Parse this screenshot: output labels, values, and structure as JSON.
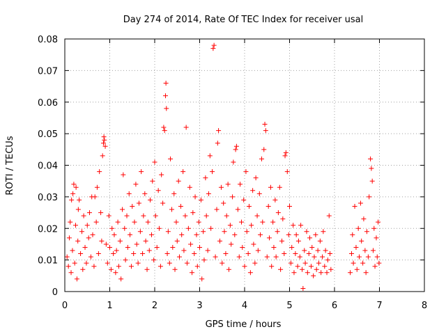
{
  "chart_data": {
    "type": "scatter",
    "title": "Day 274 of 2014, Rate Of TEC Index for receiver usal",
    "xlabel": "GPS time / hours",
    "ylabel": "ROTI / TECUs",
    "xlim": [
      0,
      8
    ],
    "ylim": [
      0,
      0.08
    ],
    "x_ticks": [
      0,
      1,
      2,
      3,
      4,
      5,
      6,
      7,
      8
    ],
    "x_tick_labels": [
      "0",
      "1",
      "2",
      "3",
      "4",
      "5",
      "6",
      "7",
      "8"
    ],
    "y_ticks": [
      0,
      0.01,
      0.02,
      0.03,
      0.04,
      0.05,
      0.06,
      0.07,
      0.08
    ],
    "y_tick_labels": [
      "0",
      "0.01",
      "0.02",
      "0.03",
      "0.04",
      "0.05",
      "0.06",
      "0.07",
      "0.08"
    ],
    "grid": true,
    "marker": "plus",
    "marker_color": "#ff0000",
    "series": [
      {
        "name": "ROTI",
        "points": [
          [
            0.05,
            0.011
          ],
          [
            0.08,
            0.008
          ],
          [
            0.1,
            0.017
          ],
          [
            0.12,
            0.022
          ],
          [
            0.14,
            0.006
          ],
          [
            0.15,
            0.029
          ],
          [
            0.17,
            0.013
          ],
          [
            0.18,
            0.031
          ],
          [
            0.2,
            0.034
          ],
          [
            0.22,
            0.009
          ],
          [
            0.24,
            0.021
          ],
          [
            0.25,
            0.033
          ],
          [
            0.27,
            0.004
          ],
          [
            0.29,
            0.016
          ],
          [
            0.3,
            0.026
          ],
          [
            0.32,
            0.029
          ],
          [
            0.35,
            0.012
          ],
          [
            0.38,
            0.019
          ],
          [
            0.4,
            0.007
          ],
          [
            0.42,
            0.024
          ],
          [
            0.45,
            0.014
          ],
          [
            0.48,
            0.009
          ],
          [
            0.5,
            0.021
          ],
          [
            0.53,
            0.017
          ],
          [
            0.55,
            0.025
          ],
          [
            0.58,
            0.011
          ],
          [
            0.6,
            0.03
          ],
          [
            0.62,
            0.018
          ],
          [
            0.65,
            0.008
          ],
          [
            0.67,
            0.03
          ],
          [
            0.7,
            0.022
          ],
          [
            0.72,
            0.033
          ],
          [
            0.75,
            0.012
          ],
          [
            0.77,
            0.038
          ],
          [
            0.8,
            0.025
          ],
          [
            0.82,
            0.016
          ],
          [
            0.84,
            0.043
          ],
          [
            0.86,
            0.047
          ],
          [
            0.87,
            0.049
          ],
          [
            0.88,
            0.048
          ],
          [
            0.9,
            0.046
          ],
          [
            0.92,
            0.015
          ],
          [
            0.95,
            0.009
          ],
          [
            0.98,
            0.024
          ],
          [
            1.0,
            0.014
          ],
          [
            1.03,
            0.007
          ],
          [
            1.05,
            0.02
          ],
          [
            1.08,
            0.012
          ],
          [
            1.1,
            0.018
          ],
          [
            1.13,
            0.006
          ],
          [
            1.15,
            0.013
          ],
          [
            1.18,
            0.022
          ],
          [
            1.2,
            0.008
          ],
          [
            1.23,
            0.016
          ],
          [
            1.25,
            0.004
          ],
          [
            1.28,
            0.026
          ],
          [
            1.3,
            0.037
          ],
          [
            1.33,
            0.02
          ],
          [
            1.35,
            0.01
          ],
          [
            1.38,
            0.024
          ],
          [
            1.4,
            0.014
          ],
          [
            1.43,
            0.031
          ],
          [
            1.45,
            0.018
          ],
          [
            1.48,
            0.008
          ],
          [
            1.5,
            0.027
          ],
          [
            1.53,
            0.012
          ],
          [
            1.55,
            0.022
          ],
          [
            1.58,
            0.034
          ],
          [
            1.6,
            0.015
          ],
          [
            1.63,
            0.009
          ],
          [
            1.65,
            0.028
          ],
          [
            1.68,
            0.019
          ],
          [
            1.7,
            0.038
          ],
          [
            1.73,
            0.012
          ],
          [
            1.75,
            0.024
          ],
          [
            1.78,
            0.031
          ],
          [
            1.8,
            0.016
          ],
          [
            1.83,
            0.007
          ],
          [
            1.85,
            0.022
          ],
          [
            1.88,
            0.013
          ],
          [
            1.9,
            0.029
          ],
          [
            1.93,
            0.018
          ],
          [
            1.95,
            0.035
          ],
          [
            1.98,
            0.01
          ],
          [
            2.0,
            0.041
          ],
          [
            2.02,
            0.024
          ],
          [
            2.05,
            0.014
          ],
          [
            2.08,
            0.032
          ],
          [
            2.1,
            0.02
          ],
          [
            2.13,
            0.008
          ],
          [
            2.15,
            0.037
          ],
          [
            2.18,
            0.028
          ],
          [
            2.2,
            0.052
          ],
          [
            2.22,
            0.051
          ],
          [
            2.24,
            0.062
          ],
          [
            2.25,
            0.066
          ],
          [
            2.26,
            0.058
          ],
          [
            2.28,
            0.012
          ],
          [
            2.3,
            0.019
          ],
          [
            2.33,
            0.009
          ],
          [
            2.35,
            0.042
          ],
          [
            2.38,
            0.026
          ],
          [
            2.4,
            0.014
          ],
          [
            2.43,
            0.031
          ],
          [
            2.45,
            0.007
          ],
          [
            2.48,
            0.022
          ],
          [
            2.5,
            0.016
          ],
          [
            2.53,
            0.035
          ],
          [
            2.55,
            0.011
          ],
          [
            2.58,
            0.027
          ],
          [
            2.6,
            0.018
          ],
          [
            2.63,
            0.038
          ],
          [
            2.65,
            0.013
          ],
          [
            2.68,
            0.024
          ],
          [
            2.7,
            0.052
          ],
          [
            2.72,
            0.009
          ],
          [
            2.75,
            0.02
          ],
          [
            2.78,
            0.033
          ],
          [
            2.8,
            0.015
          ],
          [
            2.83,
            0.006
          ],
          [
            2.85,
            0.025
          ],
          [
            2.88,
            0.012
          ],
          [
            2.9,
            0.03
          ],
          [
            2.93,
            0.018
          ],
          [
            2.95,
            0.008
          ],
          [
            2.98,
            0.022
          ],
          [
            3.0,
            0.014
          ],
          [
            3.03,
            0.029
          ],
          [
            3.05,
            0.004
          ],
          [
            3.08,
            0.019
          ],
          [
            3.1,
            0.01
          ],
          [
            3.13,
            0.036
          ],
          [
            3.15,
            0.024
          ],
          [
            3.18,
            0.013
          ],
          [
            3.2,
            0.031
          ],
          [
            3.23,
            0.043
          ],
          [
            3.25,
            0.02
          ],
          [
            3.28,
            0.038
          ],
          [
            3.3,
            0.077
          ],
          [
            3.32,
            0.078
          ],
          [
            3.35,
            0.011
          ],
          [
            3.38,
            0.026
          ],
          [
            3.4,
            0.047
          ],
          [
            3.42,
            0.051
          ],
          [
            3.45,
            0.016
          ],
          [
            3.48,
            0.033
          ],
          [
            3.5,
            0.009
          ],
          [
            3.53,
            0.028
          ],
          [
            3.55,
            0.019
          ],
          [
            3.58,
            0.012
          ],
          [
            3.6,
            0.024
          ],
          [
            3.63,
            0.034
          ],
          [
            3.65,
            0.007
          ],
          [
            3.68,
            0.021
          ],
          [
            3.7,
            0.015
          ],
          [
            3.73,
            0.03
          ],
          [
            3.75,
            0.041
          ],
          [
            3.78,
            0.018
          ],
          [
            3.8,
            0.045
          ],
          [
            3.82,
            0.046
          ],
          [
            3.85,
            0.026
          ],
          [
            3.88,
            0.011
          ],
          [
            3.9,
            0.034
          ],
          [
            3.93,
            0.022
          ],
          [
            3.95,
            0.014
          ],
          [
            3.98,
            0.029
          ],
          [
            4.0,
            0.008
          ],
          [
            4.03,
            0.038
          ],
          [
            4.05,
            0.019
          ],
          [
            4.08,
            0.012
          ],
          [
            4.1,
            0.027
          ],
          [
            4.13,
            0.006
          ],
          [
            4.15,
            0.021
          ],
          [
            4.18,
            0.032
          ],
          [
            4.2,
            0.015
          ],
          [
            4.23,
            0.009
          ],
          [
            4.25,
            0.036
          ],
          [
            4.28,
            0.024
          ],
          [
            4.3,
            0.013
          ],
          [
            4.33,
            0.031
          ],
          [
            4.35,
            0.018
          ],
          [
            4.38,
            0.042
          ],
          [
            4.4,
            0.022
          ],
          [
            4.43,
            0.045
          ],
          [
            4.45,
            0.053
          ],
          [
            4.47,
            0.051
          ],
          [
            4.5,
            0.011
          ],
          [
            4.53,
            0.027
          ],
          [
            4.55,
            0.017
          ],
          [
            4.58,
            0.033
          ],
          [
            4.6,
            0.008
          ],
          [
            4.63,
            0.022
          ],
          [
            4.65,
            0.014
          ],
          [
            4.68,
            0.029
          ],
          [
            4.7,
            0.011
          ],
          [
            4.73,
            0.019
          ],
          [
            4.75,
            0.025
          ],
          [
            4.78,
            0.033
          ],
          [
            4.8,
            0.007
          ],
          [
            4.83,
            0.016
          ],
          [
            4.85,
            0.023
          ],
          [
            4.88,
            0.012
          ],
          [
            4.9,
            0.043
          ],
          [
            4.92,
            0.044
          ],
          [
            4.95,
            0.038
          ],
          [
            4.98,
            0.018
          ],
          [
            5.0,
            0.027
          ],
          [
            5.03,
            0.009
          ],
          [
            5.05,
            0.014
          ],
          [
            5.08,
            0.021
          ],
          [
            5.1,
            0.006
          ],
          [
            5.13,
            0.012
          ],
          [
            5.15,
            0.018
          ],
          [
            5.18,
            0.008
          ],
          [
            5.2,
            0.016
          ],
          [
            5.23,
            0.011
          ],
          [
            5.25,
            0.021
          ],
          [
            5.28,
            0.007
          ],
          [
            5.3,
            0.001
          ],
          [
            5.33,
            0.013
          ],
          [
            5.35,
            0.009
          ],
          [
            5.38,
            0.019
          ],
          [
            5.4,
            0.006
          ],
          [
            5.43,
            0.012
          ],
          [
            5.45,
            0.017
          ],
          [
            5.48,
            0.008
          ],
          [
            5.5,
            0.014
          ],
          [
            5.53,
            0.005
          ],
          [
            5.55,
            0.011
          ],
          [
            5.58,
            0.018
          ],
          [
            5.6,
            0.007
          ],
          [
            5.63,
            0.013
          ],
          [
            5.65,
            0.009
          ],
          [
            5.68,
            0.016
          ],
          [
            5.7,
            0.006
          ],
          [
            5.73,
            0.011
          ],
          [
            5.75,
            0.019
          ],
          [
            5.78,
            0.008
          ],
          [
            5.8,
            0.013
          ],
          [
            5.83,
            0.006
          ],
          [
            5.85,
            0.01
          ],
          [
            5.88,
            0.024
          ],
          [
            5.9,
            0.012
          ],
          [
            5.92,
            0.007
          ],
          [
            6.35,
            0.006
          ],
          [
            6.38,
            0.012
          ],
          [
            6.4,
            0.018
          ],
          [
            6.42,
            0.009
          ],
          [
            6.45,
            0.027
          ],
          [
            6.48,
            0.014
          ],
          [
            6.5,
            0.007
          ],
          [
            6.53,
            0.02
          ],
          [
            6.55,
            0.011
          ],
          [
            6.58,
            0.028
          ],
          [
            6.6,
            0.016
          ],
          [
            6.63,
            0.009
          ],
          [
            6.65,
            0.023
          ],
          [
            6.68,
            0.013
          ],
          [
            6.7,
            0.006
          ],
          [
            6.72,
            0.019
          ],
          [
            6.75,
            0.011
          ],
          [
            6.77,
            0.03
          ],
          [
            6.8,
            0.042
          ],
          [
            6.82,
            0.039
          ],
          [
            6.84,
            0.035
          ],
          [
            6.86,
            0.013
          ],
          [
            6.88,
            0.02
          ],
          [
            6.9,
            0.008
          ],
          [
            6.93,
            0.017
          ],
          [
            6.95,
            0.011
          ],
          [
            6.97,
            0.022
          ],
          [
            6.99,
            0.009
          ]
        ]
      }
    ]
  }
}
